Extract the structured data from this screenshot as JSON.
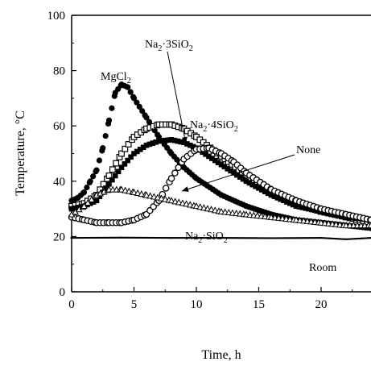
{
  "chart_data": {
    "type": "scatter",
    "title": "",
    "xlabel": "Time, h",
    "ylabel": "Temperature, °C",
    "xlim": [
      0,
      24
    ],
    "ylim": [
      0,
      100
    ],
    "x_ticks": [
      "0",
      "5",
      "10",
      "15",
      "20"
    ],
    "y_ticks": [
      "0",
      "20",
      "40",
      "60",
      "80",
      "100"
    ],
    "grid": false,
    "series": [
      {
        "name": "MgCl2",
        "marker": "filled-circle",
        "color": "#000000",
        "points": [
          [
            0,
            33
          ],
          [
            0.5,
            34
          ],
          [
            1,
            36
          ],
          [
            1.5,
            40
          ],
          [
            2,
            44
          ],
          [
            2.5,
            52
          ],
          [
            3,
            62
          ],
          [
            3.5,
            72
          ],
          [
            4,
            75
          ],
          [
            4.5,
            74
          ],
          [
            5,
            70
          ],
          [
            6,
            63
          ],
          [
            7,
            56
          ],
          [
            8,
            50
          ],
          [
            9,
            45
          ],
          [
            10,
            41
          ],
          [
            12,
            35
          ],
          [
            14,
            31
          ],
          [
            16,
            28
          ],
          [
            18,
            26
          ],
          [
            20,
            25
          ],
          [
            22,
            24
          ],
          [
            24,
            23
          ]
        ]
      },
      {
        "name": "Na2·3SiO2",
        "marker": "open-square",
        "color": "#000000",
        "points": [
          [
            0,
            31
          ],
          [
            1,
            32
          ],
          [
            2,
            35
          ],
          [
            3,
            42
          ],
          [
            4,
            50
          ],
          [
            5,
            56
          ],
          [
            6,
            59
          ],
          [
            7,
            60.5
          ],
          [
            8,
            60.5
          ],
          [
            9,
            59
          ],
          [
            10,
            56
          ],
          [
            12,
            49
          ],
          [
            14,
            42
          ],
          [
            16,
            36
          ],
          [
            18,
            32
          ],
          [
            20,
            29
          ],
          [
            22,
            27
          ],
          [
            24,
            25
          ]
        ]
      },
      {
        "name": "Na2·4SiO2",
        "marker": "filled-square",
        "color": "#000000",
        "points": [
          [
            0,
            30
          ],
          [
            1,
            31
          ],
          [
            2,
            33
          ],
          [
            3,
            39
          ],
          [
            4,
            45
          ],
          [
            5,
            50
          ],
          [
            6,
            53
          ],
          [
            7,
            54.5
          ],
          [
            8,
            55
          ],
          [
            9,
            54
          ],
          [
            10,
            52
          ],
          [
            12,
            46
          ],
          [
            14,
            40
          ],
          [
            16,
            35
          ],
          [
            18,
            31
          ],
          [
            20,
            29
          ],
          [
            22,
            27
          ],
          [
            24,
            26
          ]
        ]
      },
      {
        "name": "None",
        "marker": "open-circle",
        "color": "#000000",
        "points": [
          [
            0,
            27
          ],
          [
            1,
            26
          ],
          [
            2,
            25
          ],
          [
            3,
            25
          ],
          [
            4,
            25
          ],
          [
            5,
            26
          ],
          [
            6,
            28
          ],
          [
            7,
            33
          ],
          [
            8,
            41
          ],
          [
            9,
            48
          ],
          [
            10,
            51.5
          ],
          [
            11,
            52
          ],
          [
            12,
            50
          ],
          [
            13,
            47
          ],
          [
            14,
            43
          ],
          [
            16,
            37
          ],
          [
            18,
            33
          ],
          [
            20,
            30
          ],
          [
            22,
            28
          ],
          [
            24,
            26
          ]
        ]
      },
      {
        "name": "Na2·SiO2",
        "marker": "open-triangle",
        "color": "#000000",
        "points": [
          [
            0,
            28
          ],
          [
            1,
            31
          ],
          [
            2,
            35
          ],
          [
            3,
            37
          ],
          [
            4,
            37
          ],
          [
            5,
            36
          ],
          [
            6,
            35
          ],
          [
            8,
            33
          ],
          [
            10,
            31
          ],
          [
            12,
            29
          ],
          [
            14,
            28
          ],
          [
            16,
            27
          ],
          [
            18,
            26
          ],
          [
            20,
            25
          ],
          [
            22,
            24
          ],
          [
            24,
            24
          ]
        ]
      },
      {
        "name": "Room",
        "marker": "small-line",
        "color": "#000000",
        "points": [
          [
            0,
            19.5
          ],
          [
            4,
            19.6
          ],
          [
            8,
            19.5
          ],
          [
            12,
            19.5
          ],
          [
            16,
            19.4
          ],
          [
            20,
            19.5
          ],
          [
            22,
            19.0
          ],
          [
            24,
            19.5
          ]
        ]
      }
    ],
    "annotations": [
      {
        "text": "MgCl",
        "sub": "2",
        "after": ""
      },
      {
        "text": "Na",
        "sub": "2",
        "after": "·3SiO",
        "sub2": "2"
      },
      {
        "text": "Na",
        "sub": "2",
        "after": "·4SiO",
        "sub2": "2"
      },
      {
        "text": "None",
        "sub": "",
        "after": ""
      },
      {
        "text": "Na",
        "sub": "2",
        "after": "·SiO",
        "sub2": "2"
      },
      {
        "text": "Room",
        "sub": "",
        "after": ""
      }
    ]
  }
}
